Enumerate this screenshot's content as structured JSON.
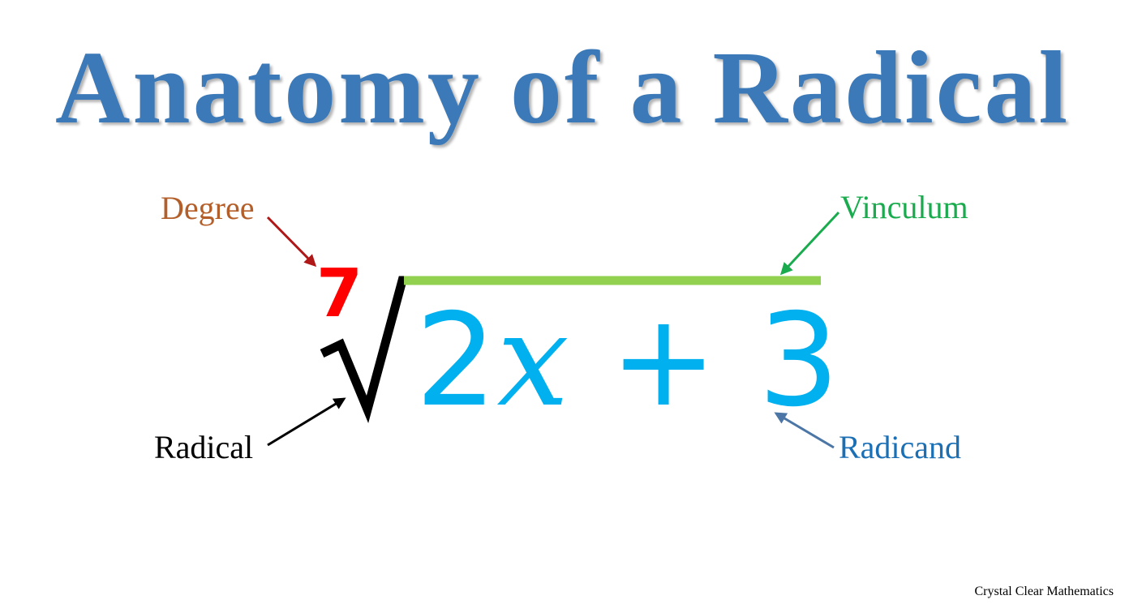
{
  "title": "Anatomy of a Radical",
  "labels": {
    "degree": "Degree",
    "vinculum": "Vinculum",
    "radical": "Radical",
    "radicand": "Radicand"
  },
  "expression": {
    "index": "7",
    "radicand_coefficient": "2",
    "radicand_variable": "x",
    "radicand_operator": "+",
    "radicand_constant": "3"
  },
  "footer": "Crystal Clear Mathematics",
  "colors": {
    "title": "#3b79b8",
    "degree_label": "#b45f2a",
    "degree_arrow": "#b01818",
    "degree_number": "#ff0000",
    "vinculum_label": "#1aab4e",
    "vinculum_bar": "#92d050",
    "radical_label": "#000000",
    "radical_sign": "#000000",
    "radicand_label": "#1b6fb4",
    "radicand_arrow": "#4b76a6",
    "radicand_text": "#00b0ef"
  }
}
